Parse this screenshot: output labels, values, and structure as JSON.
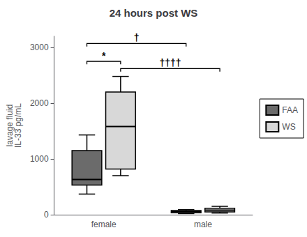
{
  "chart_data": {
    "type": "box",
    "title": "24 hours post WS",
    "ylabel": "lavage fluid\nIL-33 pg/mL",
    "categories": [
      "female",
      "male"
    ],
    "series": [
      {
        "name": "FAA",
        "color": "#6b6b6b",
        "values": [
          [
            370,
            530,
            630,
            1150,
            1430
          ],
          [
            20,
            35,
            55,
            75,
            90
          ]
        ]
      },
      {
        "name": "WS",
        "color": "#d8d8d8",
        "values": [
          [
            700,
            820,
            1580,
            2200,
            2480
          ],
          [
            30,
            50,
            80,
            115,
            150
          ]
        ]
      }
    ],
    "ylim": [
      0,
      3200
    ],
    "yticks": [
      0,
      1000,
      2000,
      3000
    ],
    "grid": false,
    "legend": "right",
    "annotations": [
      {
        "text": "*",
        "y": 2750,
        "from": {
          "category": "female",
          "series": "FAA"
        },
        "to": {
          "category": "female",
          "series": "WS"
        }
      },
      {
        "text": "††††",
        "y": 2620,
        "from": {
          "category": "female",
          "series": "WS"
        },
        "to": {
          "category": "male",
          "series": "WS"
        }
      },
      {
        "text": "†",
        "y": 3070,
        "from": {
          "category": "female",
          "series": "FAA"
        },
        "to": {
          "category": "male",
          "series": "FAA"
        }
      }
    ]
  }
}
